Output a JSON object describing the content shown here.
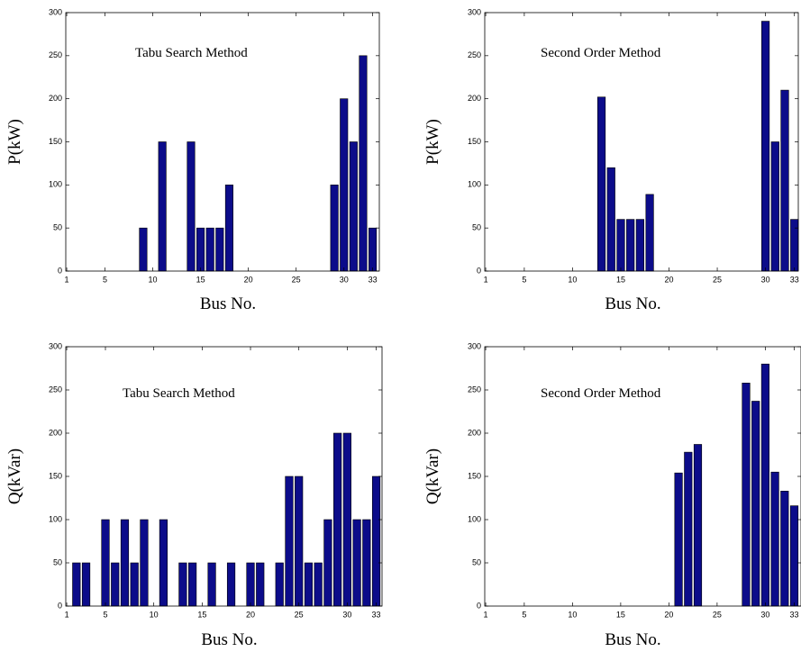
{
  "chart_data": [
    {
      "type": "bar",
      "annotation": "Tabu Search Method",
      "xlabel": "Bus No.",
      "ylabel": "P(kW)",
      "x": [
        9,
        11,
        14,
        15,
        16,
        17,
        18,
        29,
        30,
        31,
        32,
        33
      ],
      "values": [
        50,
        150,
        150,
        50,
        50,
        50,
        100,
        100,
        200,
        150,
        250,
        50
      ],
      "color": "#0c0c8a",
      "xlim": [
        0.9,
        33.7
      ],
      "xticks": [
        1,
        5,
        10,
        15,
        20,
        25,
        30,
        33
      ],
      "ylim": [
        0,
        300
      ],
      "yticks": [
        0,
        50,
        100,
        150,
        200,
        250,
        300
      ]
    },
    {
      "type": "bar",
      "annotation": "Second Order Method",
      "xlabel": "Bus No.",
      "ylabel": "P(kW)",
      "x": [
        13,
        14,
        15,
        16,
        17,
        18,
        30,
        31,
        32,
        33
      ],
      "values": [
        202,
        120,
        60,
        60,
        60,
        89,
        290,
        150,
        210,
        60
      ],
      "color": "#0c0c8a",
      "xlim": [
        0.9,
        33.4
      ],
      "xticks": [
        1,
        5,
        10,
        15,
        20,
        25,
        30,
        33
      ],
      "ylim": [
        0,
        300
      ],
      "yticks": [
        0,
        50,
        100,
        150,
        200,
        250,
        300
      ]
    },
    {
      "type": "bar",
      "annotation": "Tabu Search Method",
      "xlabel": "Bus No.",
      "ylabel": "Q(kVar)",
      "x": [
        2,
        3,
        5,
        6,
        7,
        8,
        9,
        11,
        13,
        14,
        16,
        18,
        20,
        21,
        23,
        24,
        25,
        26,
        27,
        28,
        29,
        30,
        31,
        32,
        33
      ],
      "values": [
        50,
        50,
        100,
        50,
        100,
        50,
        100,
        100,
        50,
        50,
        50,
        50,
        50,
        50,
        50,
        150,
        150,
        50,
        50,
        100,
        200,
        200,
        100,
        100,
        150
      ],
      "color": "#0c0c8a",
      "xlim": [
        0.9,
        33.6
      ],
      "xticks": [
        1,
        5,
        10,
        15,
        20,
        25,
        30,
        33
      ],
      "ylim": [
        0,
        300
      ],
      "yticks": [
        0,
        50,
        100,
        150,
        200,
        250,
        300
      ]
    },
    {
      "type": "bar",
      "annotation": "Second Order Method",
      "xlabel": "Bus No.",
      "ylabel": "Q(kVar)",
      "x": [
        21,
        22,
        23,
        28,
        29,
        30,
        31,
        32,
        33
      ],
      "values": [
        154,
        178,
        187,
        258,
        237,
        280,
        155,
        133,
        116
      ],
      "color": "#0c0c8a",
      "xlim": [
        0.9,
        33.7
      ],
      "xticks": [
        1,
        5,
        10,
        15,
        20,
        25,
        30,
        33
      ],
      "ylim": [
        0,
        300
      ],
      "yticks": [
        0,
        50,
        100,
        150,
        200,
        250,
        300
      ]
    }
  ]
}
